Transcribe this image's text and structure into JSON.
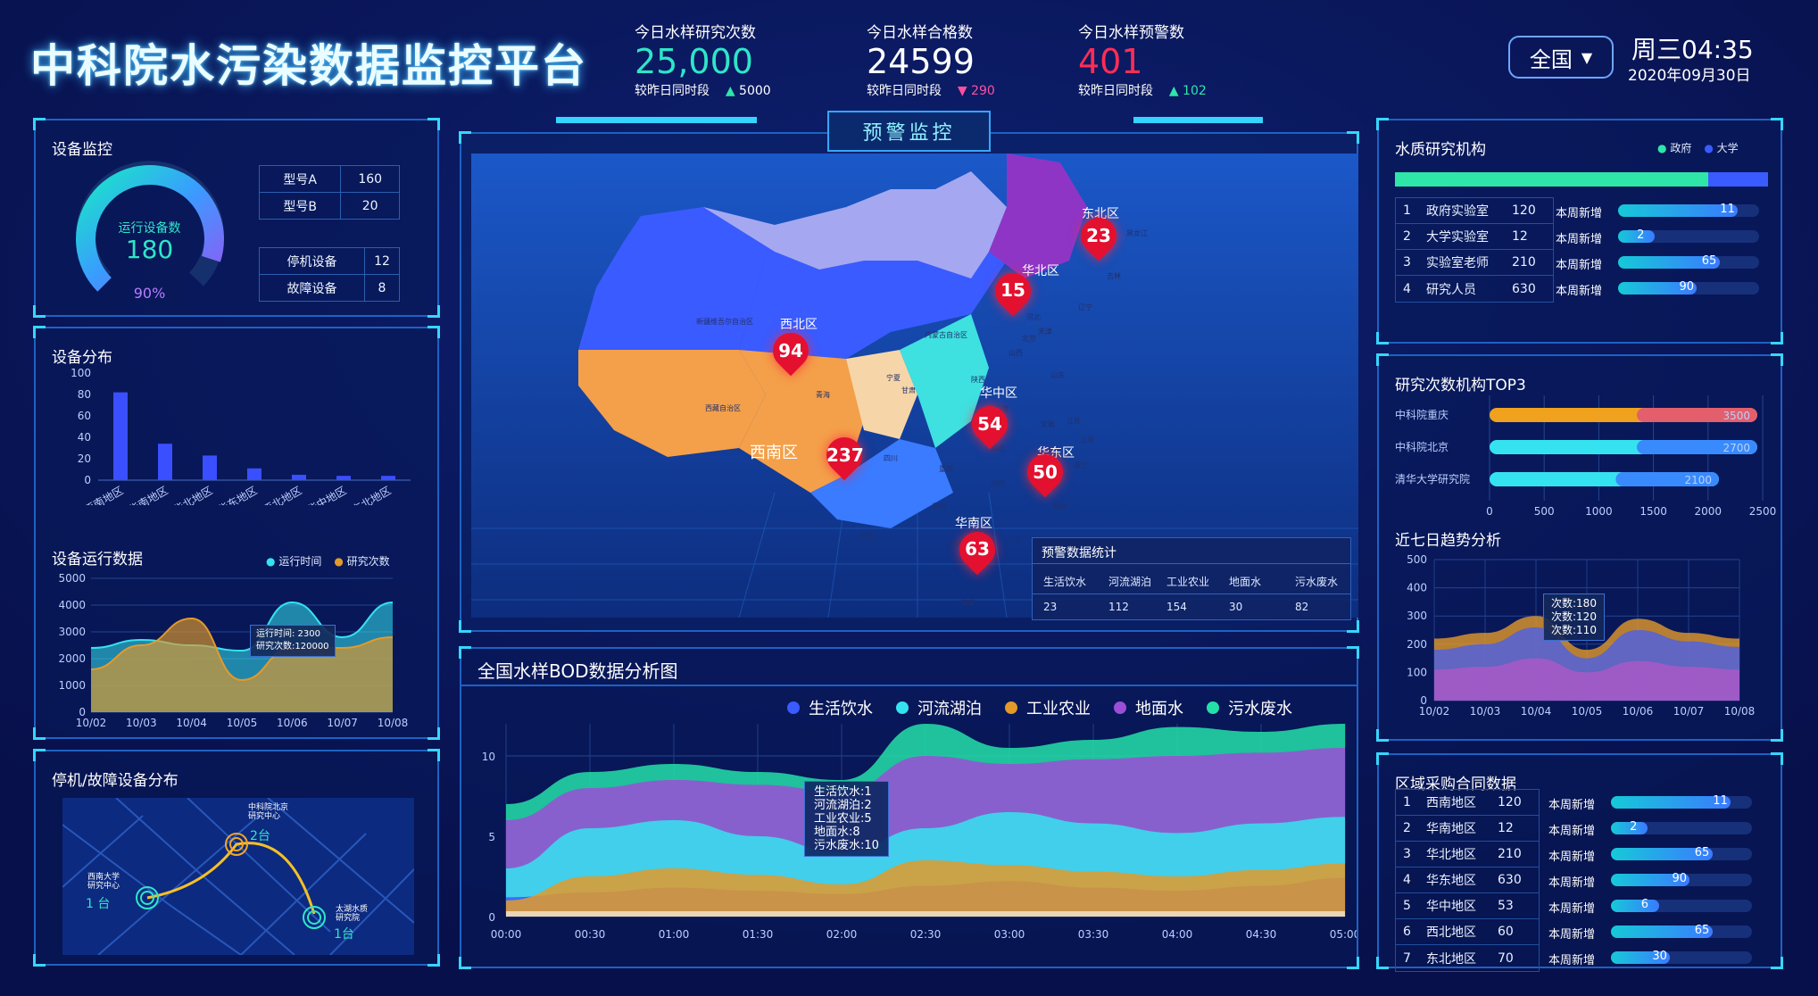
{
  "header": {
    "title": "中科院水污染数据监控平台",
    "region_select": "全国",
    "weekday_time": "周三04:35",
    "date": "2020年09月30日"
  },
  "stats": [
    {
      "label": "今日水样研究次数",
      "value": "25,000",
      "compare": "较昨日同时段",
      "arrow": "▲",
      "delta": "5000",
      "value_color": "#2ee6c8",
      "trend": "up"
    },
    {
      "label": "今日水样合格数",
      "value": "24599",
      "compare": "较昨日同时段",
      "arrow": "▼",
      "delta": "290",
      "value_color": "#ffffff",
      "trend": "down"
    },
    {
      "label": "今日水样预警数",
      "value": "401",
      "compare": "较昨日同时段",
      "arrow": "▲",
      "delta": "102",
      "value_color": "#ff2d55",
      "trend": "up"
    }
  ],
  "device_monitor": {
    "title": "设备监控",
    "gauge_label": "运行设备数",
    "gauge_value": "180",
    "gauge_percent": "90%",
    "gauge_fraction": 0.9,
    "models": [
      {
        "name": "型号A",
        "value": "160"
      },
      {
        "name": "型号B",
        "value": "20"
      }
    ],
    "states": [
      {
        "name": "停机设备",
        "value": "12"
      },
      {
        "name": "故障设备",
        "value": "8"
      }
    ]
  },
  "device_dist": {
    "title": "设备分布",
    "chart_data": {
      "type": "bar",
      "categories": [
        "西南地区",
        "华南地区",
        "华北地区",
        "华东地区",
        "西北地区",
        "华中地区",
        "东北地区"
      ],
      "values": [
        82,
        34,
        23,
        11,
        5,
        4,
        4
      ],
      "ylim": [
        0,
        100
      ],
      "yticks": [
        0,
        20,
        40,
        60,
        80,
        100
      ]
    }
  },
  "device_run": {
    "title": "设备运行数据",
    "legend": [
      "运行时间",
      "研究次数"
    ],
    "tooltip": [
      "运行时间: 2300",
      "研究次数:120000"
    ],
    "chart_data": {
      "type": "area",
      "x": [
        "10/02",
        "10/03",
        "10/04",
        "10/05",
        "10/06",
        "10/07",
        "10/08"
      ],
      "ylim": [
        0,
        5000
      ],
      "yticks": [
        0,
        1000,
        2000,
        3000,
        4000,
        5000
      ],
      "series": [
        {
          "name": "运行时间",
          "values": [
            2400,
            2700,
            2500,
            2300,
            4100,
            2800,
            4100
          ]
        },
        {
          "name": "研究次数",
          "values": [
            1600,
            2500,
            3500,
            1200,
            2400,
            2400,
            2800
          ]
        }
      ]
    }
  },
  "fault_dist": {
    "title": "停机/故障设备分布",
    "labels": [
      {
        "name": "中科院北京研究中心",
        "count": "2台"
      },
      {
        "name": "西南大学研究中心",
        "count": "1 台"
      },
      {
        "name": "太湖水质研究院",
        "count": "1台"
      }
    ]
  },
  "warning": {
    "title": "预警监控",
    "regions": [
      "东北区",
      "华北区",
      "西北区",
      "西南区",
      "华中区",
      "华东区",
      "华南区"
    ],
    "pins": [
      "23",
      "15",
      "94",
      "237",
      "54",
      "50",
      "63"
    ],
    "provinces": [
      "新疆维吾尔自治区",
      "西藏自治区",
      "青海",
      "内蒙古自治区",
      "甘肃",
      "宁夏",
      "陕西",
      "四川",
      "重庆",
      "云南",
      "贵州",
      "湖南",
      "湖北",
      "河南",
      "山西",
      "河北",
      "北京",
      "天津",
      "山东",
      "江苏",
      "安徽",
      "上海",
      "浙江",
      "江西",
      "福建",
      "广东",
      "广西",
      "海南",
      "辽宁",
      "吉林",
      "黑龙江"
    ],
    "stat_title": "预警数据统计",
    "stat_cols": [
      "生活饮水",
      "河流湖泊",
      "工业农业",
      "地面水",
      "污水废水"
    ],
    "stat_vals": [
      "23",
      "112",
      "154",
      "30",
      "82"
    ]
  },
  "research_org": {
    "title": "水质研究机构",
    "legend": [
      {
        "name": "政府",
        "color": "#2ee6a8"
      },
      {
        "name": "大学",
        "color": "#3a5bff"
      }
    ],
    "gov_fraction": 0.84,
    "rows": [
      {
        "idx": "1",
        "name": "政府实验室",
        "val": "120",
        "tag": "本周新增",
        "add": "11",
        "frac": 0.85
      },
      {
        "idx": "2",
        "name": "大学实验室",
        "val": "12",
        "tag": "本周新增",
        "add": "2",
        "frac": 0.26
      },
      {
        "idx": "3",
        "name": "实验室老师",
        "val": "210",
        "tag": "本周新增",
        "add": "65",
        "frac": 0.72
      },
      {
        "idx": "4",
        "name": "研究人员",
        "val": "630",
        "tag": "本周新增",
        "add": "90",
        "frac": 0.56
      }
    ]
  },
  "top3": {
    "title": "研究次数机构TOP3",
    "chart_data": {
      "type": "bar",
      "categories": [
        "中科院重庆",
        "中科院北京",
        "清华大学研究院"
      ],
      "values": [
        3500,
        2700,
        2100
      ],
      "xticks": [
        0,
        500,
        1000,
        1500,
        2000,
        2500
      ]
    }
  },
  "trend7": {
    "title": "近七日趋势分析",
    "tooltip": [
      "次数:180",
      "次数:120",
      "次数:110"
    ],
    "chart_data": {
      "type": "area",
      "x": [
        "10/02",
        "10/03",
        "10/04",
        "10/05",
        "10/06",
        "10/07",
        "10/08"
      ],
      "ylim": [
        0,
        500
      ],
      "yticks": [
        0,
        100,
        200,
        300,
        400,
        500
      ],
      "series": [
        {
          "values": [
            220,
            240,
            300,
            180,
            290,
            240,
            220
          ]
        },
        {
          "values": [
            180,
            200,
            260,
            150,
            250,
            210,
            190
          ]
        },
        {
          "values": [
            110,
            120,
            150,
            100,
            140,
            120,
            110
          ]
        }
      ]
    }
  },
  "contracts": {
    "title": "区域采购合同数据",
    "rows": [
      {
        "idx": "1",
        "name": "西南地区",
        "val": "120",
        "tag": "本周新增",
        "add": "11",
        "frac": 0.85
      },
      {
        "idx": "2",
        "name": "华南地区",
        "val": "12",
        "tag": "本周新增",
        "add": "2",
        "frac": 0.26
      },
      {
        "idx": "3",
        "name": "华北地区",
        "val": "210",
        "tag": "本周新增",
        "add": "65",
        "frac": 0.72
      },
      {
        "idx": "4",
        "name": "华东地区",
        "val": "630",
        "tag": "本周新增",
        "add": "90",
        "frac": 0.56
      },
      {
        "idx": "5",
        "name": "华中地区",
        "val": "53",
        "tag": "本周新增",
        "add": "6",
        "frac": 0.34
      },
      {
        "idx": "6",
        "name": "西北地区",
        "val": "60",
        "tag": "本周新增",
        "add": "65",
        "frac": 0.72
      },
      {
        "idx": "7",
        "name": "东北地区",
        "val": "70",
        "tag": "本周新增",
        "add": "30",
        "frac": 0.42
      }
    ]
  },
  "bod": {
    "title": "全国水样BOD数据分析图",
    "legend": [
      {
        "name": "生活饮水",
        "color": "#3a5bff"
      },
      {
        "name": "河流湖泊",
        "color": "#35e3f0"
      },
      {
        "name": "工业农业",
        "color": "#e39a2a"
      },
      {
        "name": "地面水",
        "color": "#9b4fd6"
      },
      {
        "name": "污水废水",
        "color": "#23e0a8"
      }
    ],
    "tooltip": [
      "生活饮水:1",
      "河流湖泊:2",
      "工业农业:5",
      "地面水:8",
      "污水废水:10"
    ],
    "chart_data": {
      "type": "area",
      "x": [
        "00:00",
        "00:30",
        "01:00",
        "01:30",
        "02:00",
        "02:30",
        "03:00",
        "03:30",
        "04:00",
        "04:30",
        "05:00"
      ],
      "ylim": [
        0,
        12
      ],
      "yticks": [
        0,
        5,
        10
      ],
      "series": [
        {
          "name": "生活饮水",
          "values": [
            1.2,
            1.5,
            1.8,
            1.6,
            1.4,
            1.9,
            2.2,
            1.8,
            1.6,
            1.9,
            2.4
          ]
        },
        {
          "name": "河流湖泊",
          "values": [
            3.0,
            5.5,
            6.0,
            5.0,
            4.0,
            5.5,
            6.5,
            5.8,
            5.2,
            5.8,
            6.2
          ]
        },
        {
          "name": "工业农业",
          "values": [
            1.0,
            2.5,
            3.0,
            2.6,
            2.0,
            3.5,
            3.2,
            2.8,
            2.5,
            2.9,
            3.3
          ]
        },
        {
          "name": "地面水",
          "values": [
            6.0,
            8.0,
            8.5,
            8.2,
            7.8,
            10.0,
            9.5,
            9.8,
            10.0,
            10.2,
            10.5
          ]
        },
        {
          "name": "污水废水",
          "values": [
            7.0,
            9.0,
            9.5,
            9.0,
            8.5,
            12.0,
            10.5,
            11.0,
            11.8,
            11.5,
            12.0
          ]
        }
      ]
    }
  }
}
